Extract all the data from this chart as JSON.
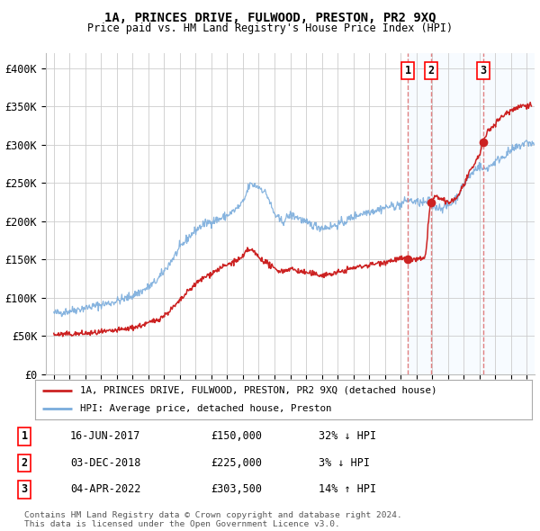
{
  "title": "1A, PRINCES DRIVE, FULWOOD, PRESTON, PR2 9XQ",
  "subtitle": "Price paid vs. HM Land Registry's House Price Index (HPI)",
  "legend_line1": "1A, PRINCES DRIVE, FULWOOD, PRESTON, PR2 9XQ (detached house)",
  "legend_line2": "HPI: Average price, detached house, Preston",
  "footer1": "Contains HM Land Registry data © Crown copyright and database right 2024.",
  "footer2": "This data is licensed under the Open Government Licence v3.0.",
  "transactions": [
    {
      "num": 1,
      "date": "16-JUN-2017",
      "price": 150000,
      "pct": "32%",
      "dir": "↓",
      "x_year": 2017.46
    },
    {
      "num": 2,
      "date": "03-DEC-2018",
      "price": 225000,
      "pct": "3%",
      "dir": "↓",
      "x_year": 2018.92
    },
    {
      "num": 3,
      "date": "04-APR-2022",
      "price": 303500,
      "pct": "14%",
      "dir": "↑",
      "x_year": 2022.25
    }
  ],
  "dot_prices": [
    150000,
    225000,
    303500
  ],
  "hpi_color": "#7aacdc",
  "price_color": "#cc2222",
  "dot_color": "#cc2222",
  "vline_color": "#e08080",
  "shade_color": "#ddeeff",
  "grid_color": "#cccccc",
  "background_color": "#ffffff",
  "ylim": [
    0,
    420000
  ],
  "xlim_left": 1994.5,
  "xlim_right": 2025.5,
  "yticks": [
    0,
    50000,
    100000,
    150000,
    200000,
    250000,
    300000,
    350000,
    400000
  ],
  "ytick_labels": [
    "£0",
    "£50K",
    "£100K",
    "£150K",
    "£200K",
    "£250K",
    "£300K",
    "£350K",
    "£400K"
  ],
  "xticks": [
    1995,
    1996,
    1997,
    1998,
    1999,
    2000,
    2001,
    2002,
    2003,
    2004,
    2005,
    2006,
    2007,
    2008,
    2009,
    2010,
    2011,
    2012,
    2013,
    2014,
    2015,
    2016,
    2017,
    2018,
    2019,
    2020,
    2021,
    2022,
    2023,
    2024,
    2025
  ]
}
